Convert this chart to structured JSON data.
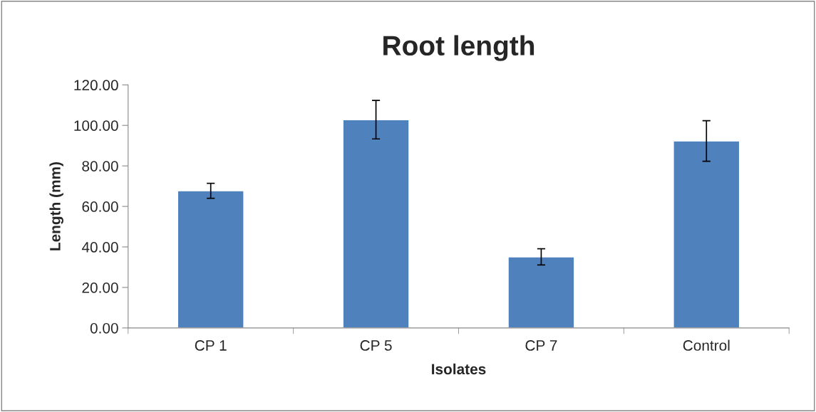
{
  "chart_data": {
    "type": "bar",
    "title": "Root length",
    "xlabel": "Isolates",
    "ylabel": "Length (mm)",
    "categories": [
      "CP 1",
      "CP 5",
      "CP 7",
      "Control"
    ],
    "values": [
      67.7,
      102.8,
      35.1,
      92.3
    ],
    "errors": [
      3.7,
      9.5,
      4.0,
      10.0
    ],
    "color": "#4f81bd",
    "ylim": [
      0,
      120
    ],
    "yticks": [
      {
        "value": 0,
        "label": "0.00"
      },
      {
        "value": 20,
        "label": "20.00"
      },
      {
        "value": 40,
        "label": "40.00"
      },
      {
        "value": 60,
        "label": "60.00"
      },
      {
        "value": 80,
        "label": "80.00"
      },
      {
        "value": 100,
        "label": "100.00"
      },
      {
        "value": 120,
        "label": "120.00"
      }
    ],
    "grid": false,
    "legend": false
  }
}
